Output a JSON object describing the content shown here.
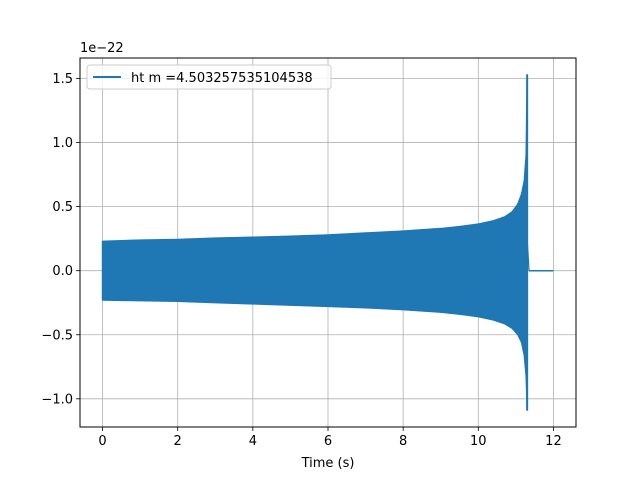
{
  "chart_data": {
    "type": "line",
    "xlabel": "Time (s)",
    "ylabel": "",
    "y_offset_text": "1e−22",
    "xlim": [
      -0.6,
      12.6
    ],
    "ylim": [
      -1.22,
      1.66
    ],
    "xticks": [
      0,
      2,
      4,
      6,
      8,
      10,
      12
    ],
    "xtick_labels": [
      "0",
      "2",
      "4",
      "6",
      "8",
      "10",
      "12"
    ],
    "yticks": [
      -1.0,
      -0.5,
      0.0,
      0.5,
      1.0,
      1.5
    ],
    "ytick_labels": [
      "−1.0",
      "−0.5",
      "0.0",
      "0.5",
      "1.0",
      "1.5"
    ],
    "grid": true,
    "legend_position": "top-left",
    "series": [
      {
        "name": "ht m =4.503257535104538",
        "color": "#1f77b4",
        "envelope_upper": {
          "x": [
            0.0,
            1,
            2,
            3,
            4,
            5,
            6,
            7,
            8,
            9,
            9.5,
            10,
            10.4,
            10.7,
            10.9,
            11.05,
            11.15,
            11.22,
            11.27,
            11.3
          ],
          "y": [
            0.23,
            0.24,
            0.245,
            0.255,
            0.262,
            0.27,
            0.28,
            0.295,
            0.31,
            0.33,
            0.345,
            0.365,
            0.39,
            0.42,
            0.46,
            0.52,
            0.6,
            0.7,
            0.9,
            1.53
          ]
        },
        "envelope_lower": {
          "x": [
            0.0,
            1,
            2,
            3,
            4,
            5,
            6,
            7,
            8,
            9,
            9.5,
            10,
            10.4,
            10.7,
            10.9,
            11.05,
            11.15,
            11.22,
            11.27,
            11.3
          ],
          "y": [
            -0.23,
            -0.235,
            -0.24,
            -0.25,
            -0.26,
            -0.27,
            -0.28,
            -0.29,
            -0.305,
            -0.325,
            -0.34,
            -0.36,
            -0.385,
            -0.415,
            -0.45,
            -0.5,
            -0.56,
            -0.66,
            -0.82,
            -1.09
          ]
        },
        "ringdown_end_x": 11.35,
        "flat_segment": {
          "x": [
            11.35,
            12.0
          ],
          "y": [
            0.0,
            0.0
          ]
        }
      }
    ]
  }
}
